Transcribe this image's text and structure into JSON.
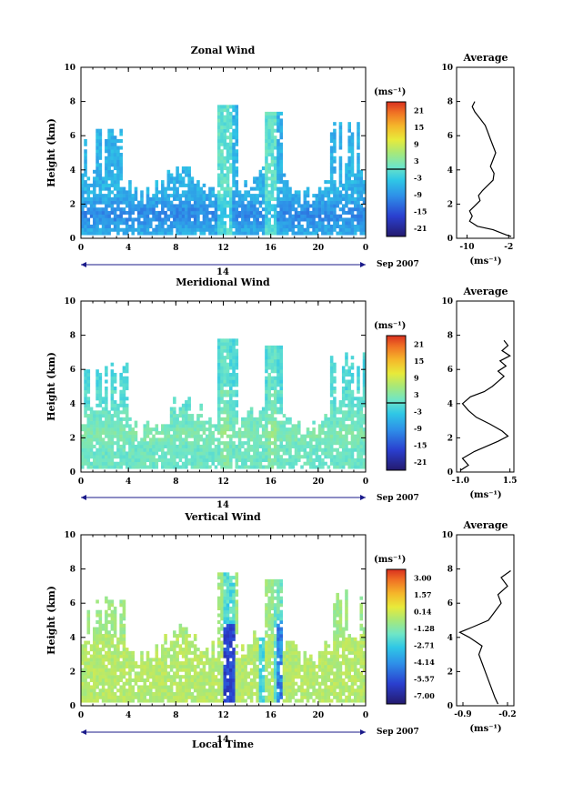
{
  "chart_data": [
    {
      "type": "heatmap",
      "title": "Zonal Wind",
      "xlabel": "",
      "ylabel": "Height (km)",
      "xticks": [
        "0",
        "4",
        "8",
        "12",
        "16",
        "20",
        "0"
      ],
      "yticks": [
        "0",
        "2",
        "4",
        "6",
        "8",
        "10"
      ],
      "xlim": [
        0,
        24
      ],
      "ylim": [
        0,
        10
      ],
      "day_label": "14",
      "month_label": "Sep 2007",
      "colorbar": {
        "unit": "(ms⁻¹)",
        "ticks": [
          "21",
          "15",
          "9",
          "3",
          "-3",
          "-9",
          "-15",
          "-21"
        ],
        "range": [
          -24,
          24
        ],
        "zero_line": 0
      },
      "field": "zonal",
      "profile": {
        "title": "Average",
        "xlabel": "(ms⁻¹)",
        "xticks": [
          "-10",
          "-2"
        ],
        "xlim": [
          -12,
          -1
        ],
        "yticks": [
          "0",
          "2",
          "4",
          "6",
          "8",
          "10"
        ],
        "points": [
          [
            -1.5,
            0.1
          ],
          [
            -2.5,
            0.2
          ],
          [
            -5,
            0.5
          ],
          [
            -8,
            0.7
          ],
          [
            -9.5,
            1.0
          ],
          [
            -9,
            1.3
          ],
          [
            -9.5,
            1.6
          ],
          [
            -8.5,
            1.9
          ],
          [
            -7.5,
            2.2
          ],
          [
            -7.8,
            2.5
          ],
          [
            -7,
            2.8
          ],
          [
            -6,
            3.1
          ],
          [
            -5,
            3.4
          ],
          [
            -4.8,
            3.8
          ],
          [
            -5.5,
            4.2
          ],
          [
            -5,
            4.6
          ],
          [
            -4.5,
            5.0
          ],
          [
            -5,
            5.4
          ],
          [
            -5.5,
            5.8
          ],
          [
            -6,
            6.2
          ],
          [
            -6.5,
            6.6
          ],
          [
            -7.5,
            7.0
          ],
          [
            -8.5,
            7.4
          ],
          [
            -9,
            7.7
          ],
          [
            -8.5,
            8.0
          ]
        ]
      }
    },
    {
      "type": "heatmap",
      "title": "Meridional Wind",
      "xlabel": "",
      "ylabel": "Height (km)",
      "xticks": [
        "0",
        "4",
        "8",
        "12",
        "16",
        "20",
        "0"
      ],
      "yticks": [
        "0",
        "2",
        "4",
        "6",
        "8",
        "10"
      ],
      "xlim": [
        0,
        24
      ],
      "ylim": [
        0,
        10
      ],
      "day_label": "14",
      "month_label": "Sep 2007",
      "colorbar": {
        "unit": "(ms⁻¹)",
        "ticks": [
          "21",
          "15",
          "9",
          "3",
          "-3",
          "-9",
          "-15",
          "-21"
        ],
        "range": [
          -24,
          24
        ],
        "zero_line": 0
      },
      "field": "meridional",
      "profile": {
        "title": "Average",
        "xlabel": "(ms⁻¹)",
        "xticks": [
          "-1.0",
          "1.5"
        ],
        "xlim": [
          -1.2,
          1.7
        ],
        "yticks": [
          "0",
          "2",
          "4",
          "6",
          "8",
          "10"
        ],
        "points": [
          [
            -1.0,
            0.1
          ],
          [
            -0.6,
            0.4
          ],
          [
            -0.9,
            0.8
          ],
          [
            -0.3,
            1.2
          ],
          [
            0.3,
            1.5
          ],
          [
            0.9,
            1.8
          ],
          [
            1.4,
            2.1
          ],
          [
            1.1,
            2.4
          ],
          [
            0.5,
            2.8
          ],
          [
            -0.2,
            3.2
          ],
          [
            -0.6,
            3.6
          ],
          [
            -0.9,
            4.0
          ],
          [
            -0.5,
            4.4
          ],
          [
            0.2,
            4.7
          ],
          [
            0.6,
            5.0
          ],
          [
            0.9,
            5.3
          ],
          [
            1.2,
            5.6
          ],
          [
            0.9,
            5.9
          ],
          [
            1.3,
            6.2
          ],
          [
            1.0,
            6.5
          ],
          [
            1.5,
            6.8
          ],
          [
            1.1,
            7.1
          ],
          [
            1.4,
            7.4
          ],
          [
            1.2,
            7.7
          ]
        ]
      }
    },
    {
      "type": "heatmap",
      "title": "Vertical Wind",
      "xlabel": "Local Time",
      "ylabel": "Height (km)",
      "xticks": [
        "0",
        "4",
        "8",
        "12",
        "16",
        "20",
        "0"
      ],
      "yticks": [
        "0",
        "2",
        "4",
        "6",
        "8",
        "10"
      ],
      "xlim": [
        0,
        24
      ],
      "ylim": [
        0,
        10
      ],
      "day_label": "14",
      "month_label": "Sep 2007",
      "colorbar": {
        "unit": "(ms⁻¹)",
        "ticks": [
          "3.00",
          "1.57",
          "0.14",
          "-1.28",
          "-2.71",
          "-4.14",
          "-5.57",
          "-7.00"
        ],
        "range": [
          -7.7,
          3.7
        ]
      },
      "field": "vertical",
      "profile": {
        "title": "Average",
        "xlabel": "(ms⁻¹)",
        "xticks": [
          "-0.9",
          "-0.2"
        ],
        "xlim": [
          -1.0,
          -0.1
        ],
        "yticks": [
          "0",
          "2",
          "4",
          "6",
          "8",
          "10"
        ],
        "points": [
          [
            -0.35,
            0.1
          ],
          [
            -0.4,
            0.5
          ],
          [
            -0.45,
            1.0
          ],
          [
            -0.5,
            1.5
          ],
          [
            -0.55,
            2.0
          ],
          [
            -0.6,
            2.5
          ],
          [
            -0.65,
            3.0
          ],
          [
            -0.6,
            3.5
          ],
          [
            -0.8,
            4.0
          ],
          [
            -0.95,
            4.3
          ],
          [
            -0.75,
            4.6
          ],
          [
            -0.5,
            5.0
          ],
          [
            -0.4,
            5.5
          ],
          [
            -0.3,
            6.0
          ],
          [
            -0.35,
            6.5
          ],
          [
            -0.2,
            7.0
          ],
          [
            -0.3,
            7.5
          ],
          [
            -0.15,
            7.9
          ]
        ]
      }
    }
  ]
}
